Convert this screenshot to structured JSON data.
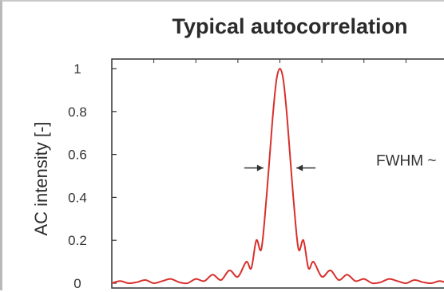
{
  "chart_data": {
    "type": "line",
    "title": "Typical autocorrelation",
    "xlabel": "",
    "ylabel": "AC intensity [-]",
    "ylim": [
      0,
      1
    ],
    "xlim": [
      -1,
      1
    ],
    "yticks": [
      "0",
      "0.2",
      "0.4",
      "0.6",
      "0.8",
      "1"
    ],
    "ytick_values": [
      0,
      0.2,
      0.4,
      0.6,
      0.8,
      1
    ],
    "grid": false,
    "series": [
      {
        "color": "#d8302c",
        "x": [
          -1.0,
          -0.95,
          -0.9,
          -0.85,
          -0.8,
          -0.75,
          -0.7,
          -0.65,
          -0.6,
          -0.55,
          -0.5,
          -0.45,
          -0.4,
          -0.35,
          -0.3,
          -0.25,
          -0.2,
          -0.17,
          -0.14,
          -0.11,
          -0.08,
          -0.06,
          -0.04,
          -0.02,
          0.0,
          0.02,
          0.04,
          0.06,
          0.08,
          0.11,
          0.14,
          0.17,
          0.2,
          0.25,
          0.3,
          0.35,
          0.4,
          0.45,
          0.5,
          0.55,
          0.6,
          0.65,
          0.7,
          0.75,
          0.8,
          0.85,
          0.9,
          0.95,
          1.0
        ],
        "y": [
          0.0,
          0.01,
          0.0,
          0.005,
          0.015,
          0.0,
          0.01,
          0.02,
          0.005,
          0.0,
          0.02,
          0.01,
          0.04,
          0.015,
          0.06,
          0.03,
          0.1,
          0.07,
          0.2,
          0.16,
          0.4,
          0.6,
          0.8,
          0.95,
          1.0,
          0.95,
          0.8,
          0.6,
          0.4,
          0.16,
          0.2,
          0.07,
          0.1,
          0.03,
          0.06,
          0.015,
          0.04,
          0.01,
          0.02,
          0.0,
          0.005,
          0.02,
          0.01,
          0.0,
          0.015,
          0.005,
          0.0,
          0.01,
          0.0
        ]
      }
    ],
    "annotations": [
      {
        "text": "FWHM ~",
        "y": 0.54
      }
    ],
    "annotation_arrows": [
      {
        "direction": "right",
        "y": 0.5,
        "x": -0.06
      },
      {
        "direction": "left",
        "y": 0.5,
        "x": 0.06
      }
    ]
  },
  "colors": {
    "line": "#d8302c",
    "axis": "#333333",
    "text": "#2b2b2b",
    "arrow": "#333333"
  }
}
